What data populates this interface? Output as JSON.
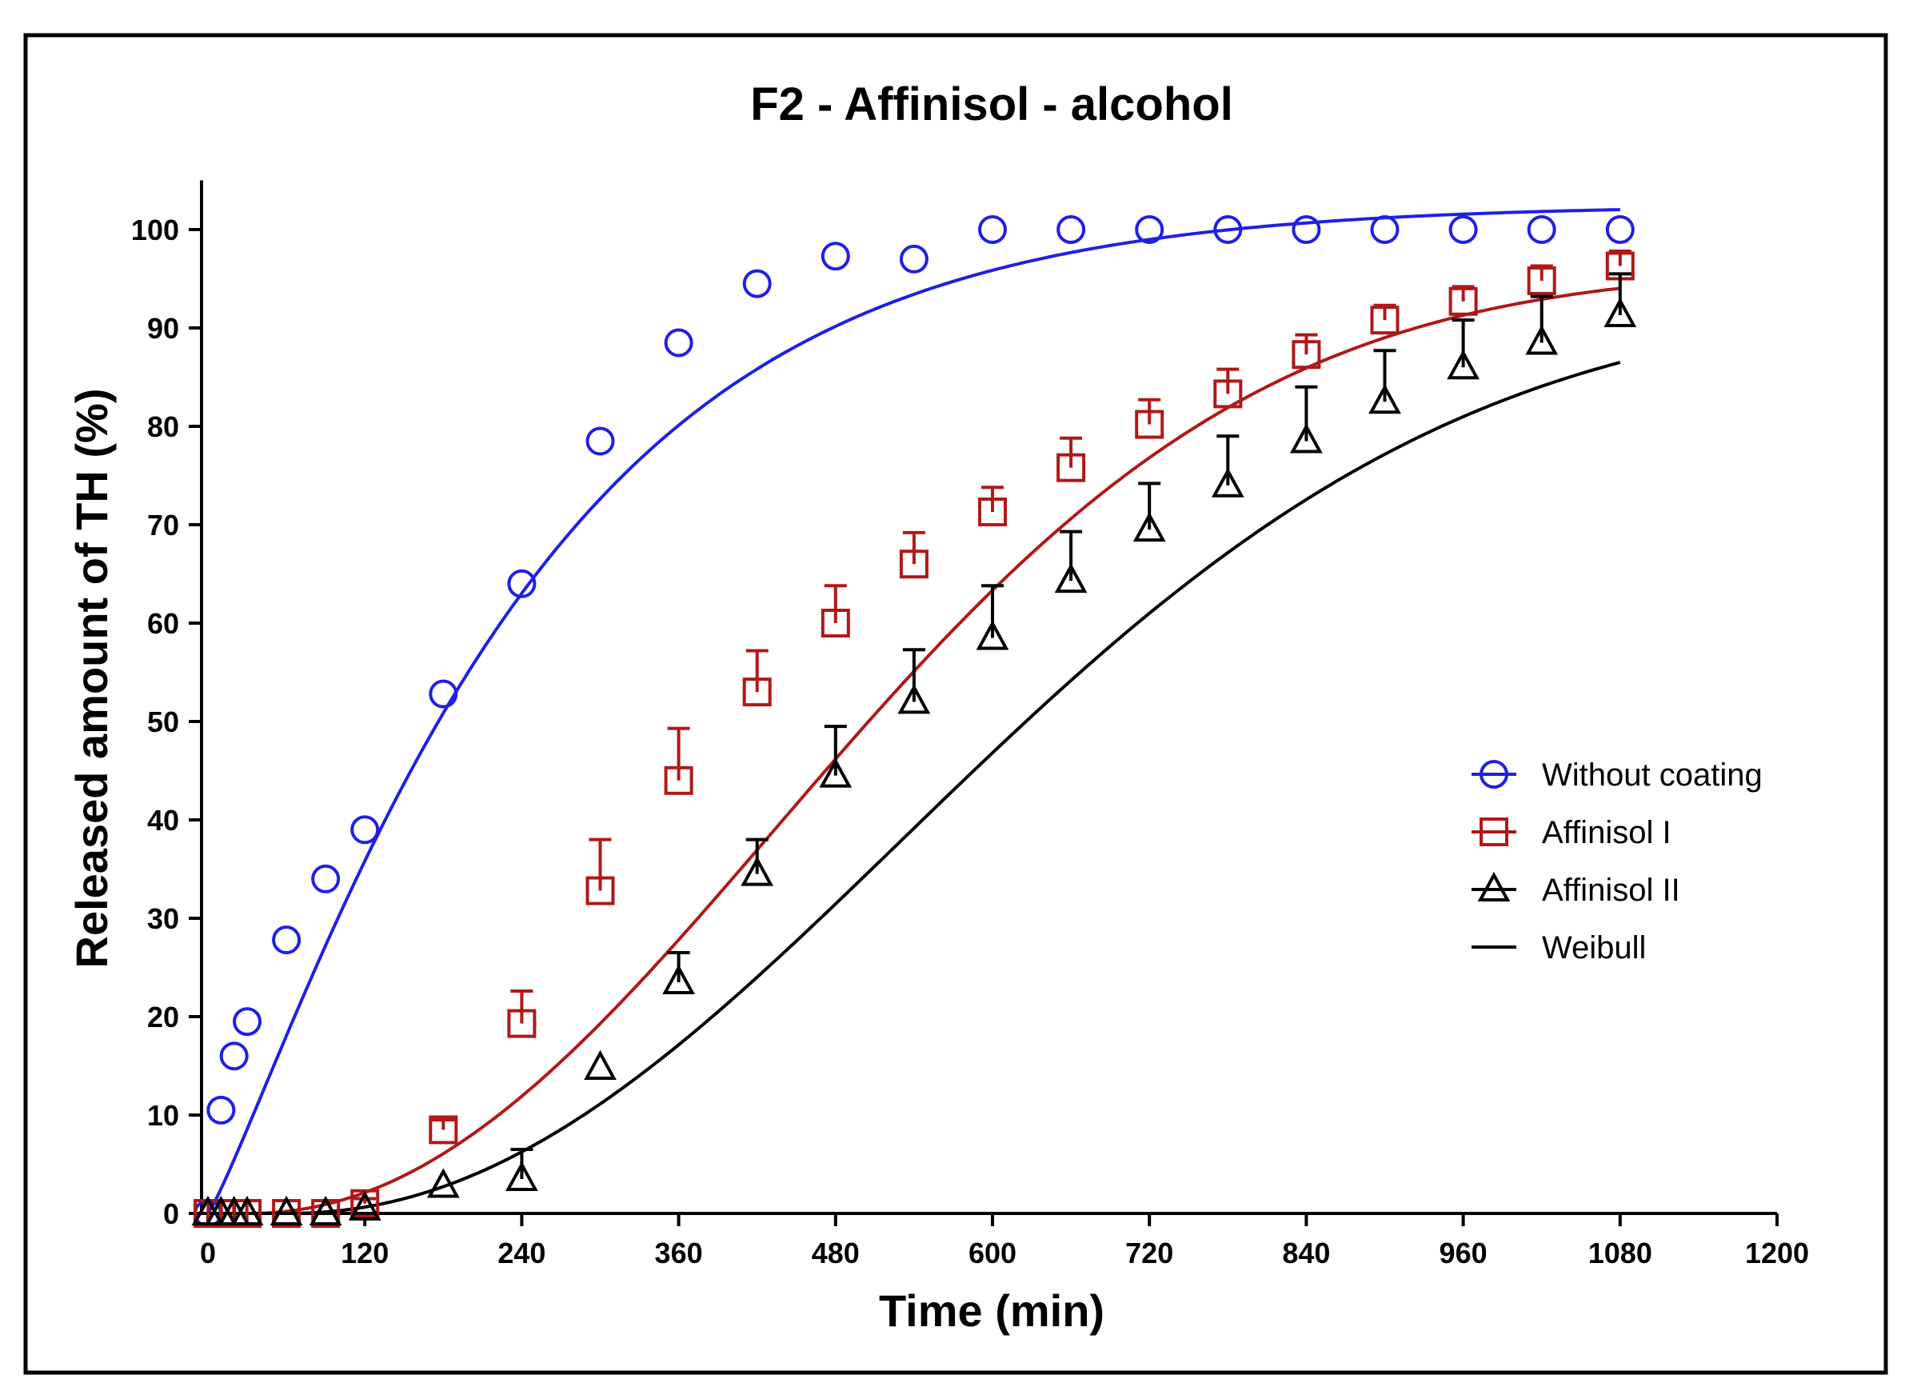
{
  "chart_data": {
    "type": "scatter",
    "title": "F2 - Affinisol - alcohol",
    "xlabel": "Time (min)",
    "ylabel": "Released amount of TH (%)",
    "xlim": [
      0,
      1200
    ],
    "ylim": [
      0,
      105
    ],
    "xticks": [
      "0",
      "120",
      "240",
      "360",
      "480",
      "600",
      "720",
      "840",
      "960",
      "1080",
      "1200"
    ],
    "yticks": [
      "0",
      "10",
      "20",
      "30",
      "40",
      "50",
      "60",
      "70",
      "80",
      "90",
      "100"
    ],
    "legend_position": "center-right",
    "series": [
      {
        "name": "Without coating",
        "marker": "circle",
        "color": "#1f1fe6",
        "x": [
          0,
          10,
          20,
          30,
          60,
          90,
          120,
          180,
          240,
          300,
          360,
          420,
          480,
          540,
          600,
          660,
          720,
          780,
          840,
          900,
          960,
          1020,
          1080
        ],
        "y": [
          0,
          10.5,
          16,
          19.5,
          27.8,
          34,
          39,
          52.8,
          64,
          78.5,
          88.5,
          94.5,
          97.3,
          97,
          100,
          100,
          100,
          100,
          100,
          100,
          100,
          100,
          100
        ],
        "err": [],
        "fit": {
          "model": "Weibull",
          "ymax": 102.5,
          "tau": 250,
          "beta": 1.15
        }
      },
      {
        "name": "Affinisol I",
        "marker": "square",
        "color": "#b01818",
        "x": [
          0,
          10,
          20,
          30,
          60,
          90,
          120,
          180,
          240,
          300,
          360,
          420,
          480,
          540,
          600,
          660,
          720,
          780,
          840,
          900,
          960,
          1020,
          1080
        ],
        "y": [
          0,
          0,
          0,
          0,
          0,
          0,
          1,
          8.5,
          19.3,
          32.8,
          44,
          53,
          60,
          66,
          71.3,
          75.8,
          80.2,
          83.3,
          87.3,
          90.8,
          92.7,
          94.8,
          96.3
        ],
        "err": [
          0,
          0,
          0,
          0,
          0,
          0,
          0.5,
          1,
          3.3,
          5.2,
          5.3,
          4.2,
          3.8,
          3.2,
          2.5,
          3,
          2.5,
          2.5,
          2,
          1.5,
          1.5,
          1.5,
          1.5
        ],
        "fit": {
          "model": "Weibull",
          "ymax": 96,
          "tau": 550,
          "beta": 2.1,
          "t0": 30
        }
      },
      {
        "name": "Affinisol II",
        "marker": "triangle",
        "color": "#000000",
        "x": [
          0,
          10,
          20,
          30,
          60,
          90,
          120,
          180,
          240,
          300,
          360,
          420,
          480,
          540,
          600,
          660,
          720,
          780,
          840,
          900,
          960,
          1020,
          1080
        ],
        "y": [
          0,
          0,
          0,
          0,
          0,
          0,
          0.5,
          2.8,
          3.5,
          14.8,
          23.5,
          34.5,
          44.5,
          52,
          58.5,
          64.3,
          69.5,
          74,
          78.5,
          82.5,
          86,
          88.5,
          91.3
        ],
        "err": [
          0,
          0,
          0,
          0,
          0,
          0,
          0,
          0,
          3,
          0,
          3,
          3.5,
          5,
          5.3,
          5.3,
          5,
          4.7,
          5,
          5.5,
          5.2,
          4.8,
          4.7,
          4.2
        ],
        "fit": {
          "model": "Weibull",
          "ymax": 93,
          "tau": 640,
          "beta": 2.1,
          "t0": 60
        }
      },
      {
        "name": "Weibull",
        "marker": "line",
        "color": "#000000"
      }
    ]
  }
}
